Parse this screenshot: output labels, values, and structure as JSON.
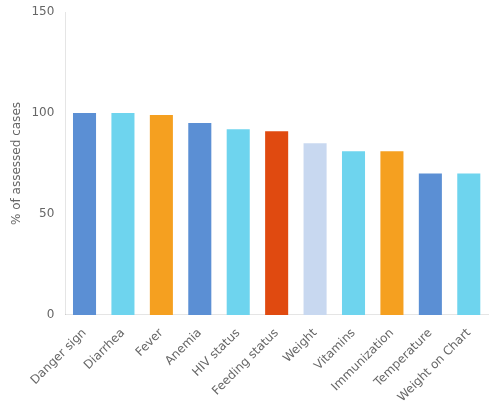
{
  "chart_data": {
    "type": "bar",
    "categories": [
      "Danger sign",
      "Diarrhea",
      "Fever",
      "Anemia",
      "HIV status",
      "Feeding status",
      "Weight",
      "Vitamins",
      "Immunization",
      "Temperature",
      "Weight on Chart"
    ],
    "values": [
      100,
      100,
      99,
      95,
      92,
      91,
      85,
      81,
      81,
      70,
      70
    ],
    "colors": [
      "#5B8FD4",
      "#6ED4EE",
      "#F5A020",
      "#5B8FD4",
      "#6ED4EE",
      "#E04A10",
      "#C8D8F0",
      "#6ED4EE",
      "#F5A020",
      "#5B8FD4",
      "#6ED4EE"
    ],
    "ylabel": "% of assessed cases",
    "ylim": [
      0,
      150
    ],
    "yticks": [
      0,
      50,
      100,
      150
    ],
    "grid": false
  }
}
